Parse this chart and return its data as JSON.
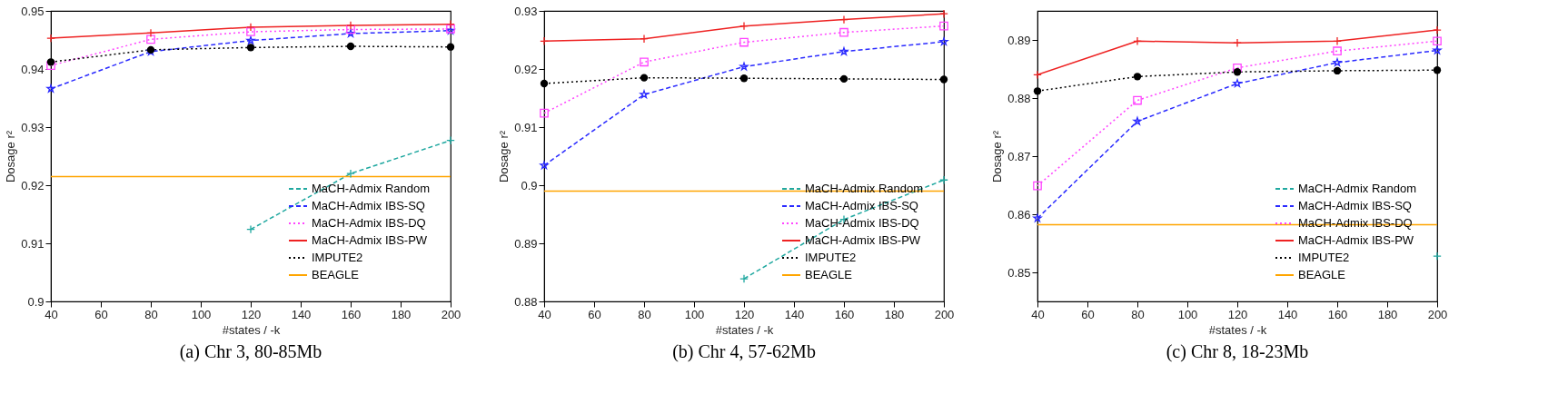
{
  "chart_data": [
    {
      "type": "line",
      "title": "(a) Chr 3, 80-85Mb",
      "xlabel": "#states / -k",
      "ylabel": "Dosage r²",
      "x": [
        40,
        80,
        120,
        160,
        200
      ],
      "xlim": [
        40,
        200
      ],
      "xticks": [
        40,
        60,
        80,
        100,
        120,
        140,
        160,
        180,
        200
      ],
      "ylim": [
        0.9,
        0.95
      ],
      "yticks": [
        0.9,
        0.91,
        0.92,
        0.93,
        0.94,
        0.95
      ],
      "legend": "bottom right",
      "series": [
        {
          "name": "MaCH-Admix Random",
          "color": "#20a8a0",
          "marker": "cross",
          "line_style": "dashed",
          "values": [
            null,
            null,
            0.9124,
            0.922,
            0.9277
          ]
        },
        {
          "name": "MaCH-Admix IBS-SQ",
          "color": "#2b2bff",
          "marker": "star",
          "line_style": "dashed",
          "values": [
            0.9366,
            0.943,
            0.9449,
            0.9461,
            0.9466
          ]
        },
        {
          "name": "MaCH-Admix IBS-DQ",
          "color": "#ff44ff",
          "marker": "square",
          "line_style": "dotted",
          "values": [
            0.9406,
            0.9451,
            0.9464,
            0.9468,
            0.9469
          ]
        },
        {
          "name": "MaCH-Admix IBS-PW",
          "color": "#ee2222",
          "marker": "cross",
          "line_style": "solid",
          "values": [
            0.9453,
            0.9462,
            0.9472,
            0.9475,
            0.9477
          ]
        },
        {
          "name": "IMPUTE2",
          "color": "#000000",
          "marker": "circle",
          "line_style": "dotted",
          "values": [
            0.9412,
            0.9433,
            0.9437,
            0.9439,
            0.9438
          ]
        },
        {
          "name": "BEAGLE",
          "color": "#ffa500",
          "marker": "none",
          "line_style": "solid",
          "values": [
            0.9215,
            0.9215,
            0.9215,
            0.9215,
            0.9215
          ]
        }
      ]
    },
    {
      "type": "line",
      "title": "(b) Chr 4, 57-62Mb",
      "xlabel": "#states / -k",
      "ylabel": "Dosage r²",
      "x": [
        40,
        80,
        120,
        160,
        200
      ],
      "xlim": [
        40,
        200
      ],
      "xticks": [
        40,
        60,
        80,
        100,
        120,
        140,
        160,
        180,
        200
      ],
      "ylim": [
        0.88,
        0.93
      ],
      "yticks": [
        0.88,
        0.89,
        0.9,
        0.91,
        0.92,
        0.93
      ],
      "legend": "bottom right",
      "series": [
        {
          "name": "MaCH-Admix Random",
          "color": "#20a8a0",
          "marker": "cross",
          "line_style": "dashed",
          "values": [
            null,
            null,
            0.8839,
            0.8941,
            0.9009
          ]
        },
        {
          "name": "MaCH-Admix IBS-SQ",
          "color": "#2b2bff",
          "marker": "star",
          "line_style": "dashed",
          "values": [
            0.9034,
            0.9156,
            0.9204,
            0.923,
            0.9247
          ]
        },
        {
          "name": "MaCH-Admix IBS-DQ",
          "color": "#ff44ff",
          "marker": "square",
          "line_style": "dotted",
          "values": [
            0.9124,
            0.9212,
            0.9246,
            0.9263,
            0.9274
          ]
        },
        {
          "name": "MaCH-Admix IBS-PW",
          "color": "#ee2222",
          "marker": "cross",
          "line_style": "solid",
          "values": [
            0.9248,
            0.9252,
            0.9274,
            0.9285,
            0.9295
          ]
        },
        {
          "name": "IMPUTE2",
          "color": "#000000",
          "marker": "circle",
          "line_style": "dotted",
          "values": [
            0.9175,
            0.9185,
            0.9184,
            0.9183,
            0.9182
          ]
        },
        {
          "name": "BEAGLE",
          "color": "#ffa500",
          "marker": "none",
          "line_style": "solid",
          "values": [
            0.899,
            0.899,
            0.899,
            0.899,
            0.899
          ]
        }
      ]
    },
    {
      "type": "line",
      "title": "(c) Chr 8, 18-23Mb",
      "xlabel": "#states / -k",
      "ylabel": "Dosage r²",
      "x": [
        40,
        80,
        120,
        160,
        200
      ],
      "xlim": [
        40,
        200
      ],
      "xticks": [
        40,
        60,
        80,
        100,
        120,
        140,
        160,
        180,
        200
      ],
      "ylim": [
        0.845,
        0.895
      ],
      "yticks": [
        0.85,
        0.86,
        0.87,
        0.88,
        0.89
      ],
      "legend": "bottom right",
      "series": [
        {
          "name": "MaCH-Admix Random",
          "color": "#20a8a0",
          "marker": "cross",
          "line_style": "dashed",
          "values": [
            null,
            null,
            null,
            null,
            0.8528
          ]
        },
        {
          "name": "MaCH-Admix IBS-SQ",
          "color": "#2b2bff",
          "marker": "star",
          "line_style": "dashed",
          "values": [
            0.8593,
            0.876,
            0.8825,
            0.8861,
            0.8882
          ]
        },
        {
          "name": "MaCH-Admix IBS-DQ",
          "color": "#ff44ff",
          "marker": "square",
          "line_style": "dotted",
          "values": [
            0.8649,
            0.8796,
            0.8852,
            0.8881,
            0.8898
          ]
        },
        {
          "name": "MaCH-Admix IBS-PW",
          "color": "#ee2222",
          "marker": "cross",
          "line_style": "solid",
          "values": [
            0.884,
            0.8898,
            0.8895,
            0.8898,
            0.8917
          ]
        },
        {
          "name": "IMPUTE2",
          "color": "#000000",
          "marker": "circle",
          "line_style": "dotted",
          "values": [
            0.8812,
            0.8837,
            0.8845,
            0.8847,
            0.8848
          ]
        },
        {
          "name": "BEAGLE",
          "color": "#ffa500",
          "marker": "none",
          "line_style": "solid",
          "values": [
            0.8582,
            0.8582,
            0.8582,
            0.8582,
            0.8582
          ]
        }
      ]
    }
  ]
}
